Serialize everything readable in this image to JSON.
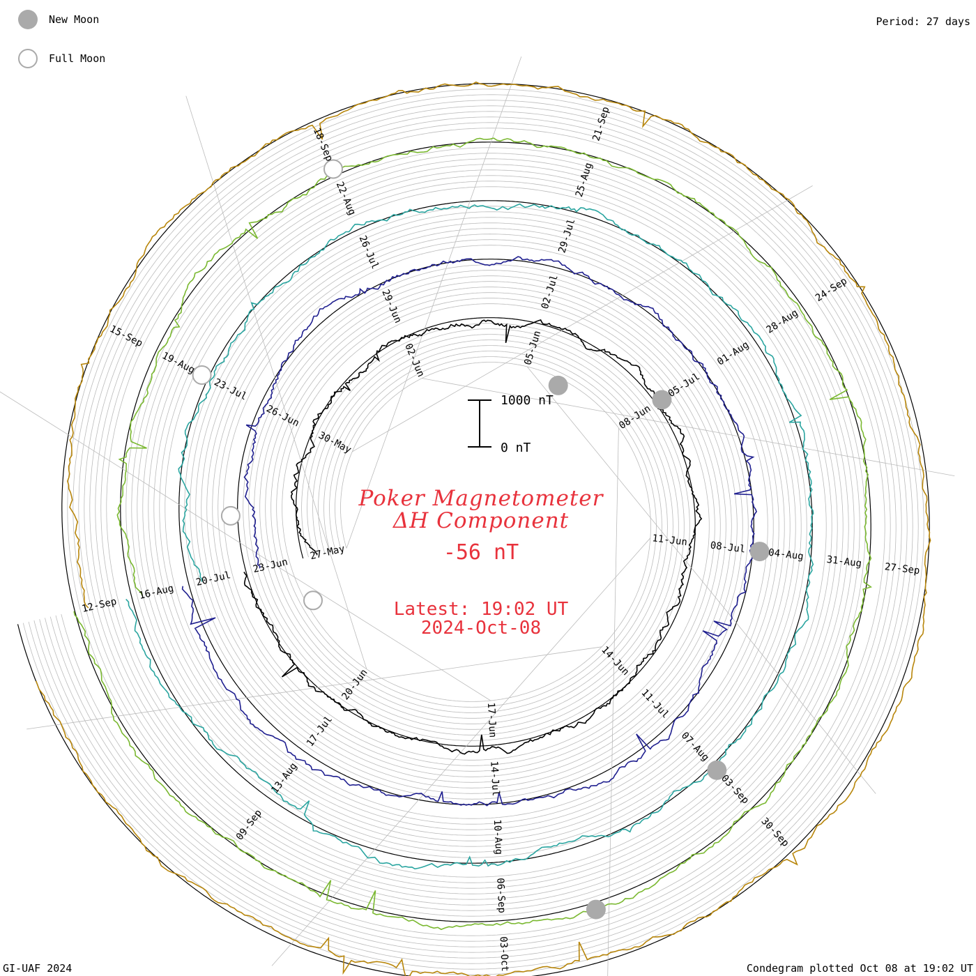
{
  "header": {
    "period": "Period: 27 days",
    "footer_left": "GI-UAF 2024",
    "footer_right": "Condegram plotted Oct 08 at 19:02 UT"
  },
  "legend": {
    "new_moon": "New Moon",
    "full_moon": "Full Moon"
  },
  "title": {
    "line1": "Poker Magnetometer",
    "line2": "ΔH Component",
    "value": "-56 nT",
    "latest_time": "Latest: 19:02 UT",
    "latest_date": "2024-Oct-08"
  },
  "scale_bar": {
    "top_label": "1000 nT",
    "bottom_label": "0 nT"
  },
  "colors": {
    "accent_red": "#e8323c",
    "moon_marker": "#aaaaaa",
    "grid": "#bbbbbb",
    "baseline": "#000000"
  },
  "chart_data": {
    "type": "line",
    "subtype": "condegram-spiral",
    "title": "Poker Magnetometer ΔH Component",
    "period_days": 27,
    "units": "nT",
    "latest_value": -56,
    "latest_time": "2024-10-08T19:02Z",
    "scale_bar_nT": [
      0,
      1000
    ],
    "cycles": [
      {
        "color": "#000000",
        "date_labels": [
          "27-May",
          "30-May",
          "02-Jun",
          "05-Jun",
          "08-Jun",
          "11-Jun",
          "14-Jun",
          "17-Jun",
          "20-Jun"
        ]
      },
      {
        "color": "#1f1f8f",
        "date_labels": [
          "23-Jun",
          "26-Jun",
          "29-Jun",
          "02-Jul",
          "05-Jul",
          "08-Jul",
          "11-Jul",
          "14-Jul",
          "17-Jul"
        ]
      },
      {
        "color": "#2aa5a0",
        "date_labels": [
          "20-Jul",
          "23-Jul",
          "26-Jul",
          "29-Jul",
          "01-Aug",
          "04-Aug",
          "07-Aug",
          "10-Aug",
          "13-Aug"
        ]
      },
      {
        "color": "#7ab830",
        "date_labels": [
          "16-Aug",
          "19-Aug",
          "22-Aug",
          "25-Aug",
          "28-Aug",
          "31-Aug",
          "03-Sep",
          "06-Sep",
          "09-Sep"
        ]
      },
      {
        "color": "#b8860b",
        "date_labels": [
          "12-Sep",
          "15-Sep",
          "18-Sep",
          "21-Sep",
          "24-Sep",
          "27-Sep",
          "30-Sep",
          "03-Oct"
        ]
      }
    ],
    "new_moons": [
      "2024-06-06",
      "2024-07-05",
      "2024-08-04",
      "2024-09-03",
      "2024-10-02"
    ],
    "full_moons": [
      "2024-06-22",
      "2024-07-21",
      "2024-08-19",
      "2024-09-18"
    ],
    "grid": true
  }
}
